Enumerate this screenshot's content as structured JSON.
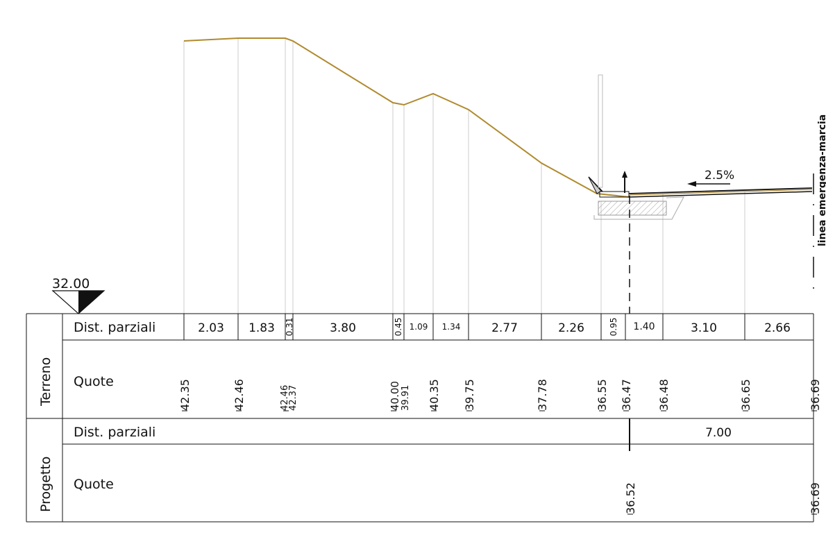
{
  "datum": "32.00",
  "slope_label": "2.5%",
  "lane_label": "linea emergenza-marcia",
  "sections": {
    "terreno": "Terreno",
    "progetto": "Progetto"
  },
  "rows": {
    "dist_label": "Dist. parziali",
    "quote_label": "Quote"
  },
  "terreno_dist": [
    "2.03",
    "1.83",
    "0.31",
    "3.80",
    "0.45",
    "1.09",
    "1.34",
    "2.77",
    "2.26",
    "0.95",
    "1.40",
    "3.10",
    "2.66"
  ],
  "terreno_quote": [
    "42.35",
    "42.46",
    "42.46",
    "42.37",
    "40.00",
    "39.91",
    "40.35",
    "39.75",
    "37.78",
    "36.55",
    "36.47",
    "36.48",
    "36.65",
    "36.69"
  ],
  "progetto_dist": [
    "7.00"
  ],
  "progetto_quote": [
    "36.52",
    "36.69"
  ],
  "colors": {
    "terrain": "#B08A2E",
    "lines": "#111111",
    "guides": "#cccccc",
    "hatch": "#999999"
  }
}
